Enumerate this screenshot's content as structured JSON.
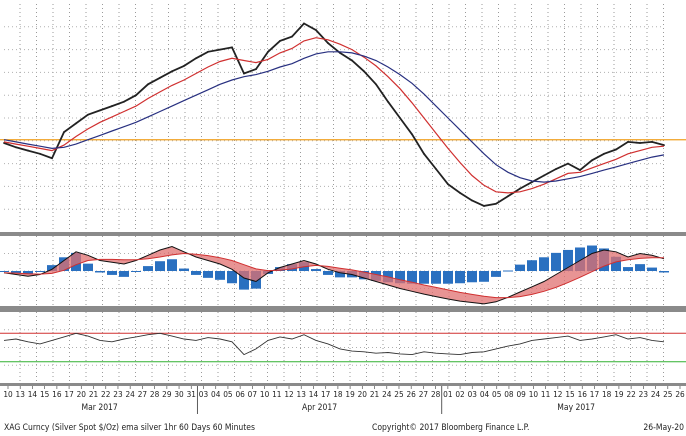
{
  "chart_data": {
    "type": "line",
    "footer": {
      "security": "XAG Curncy (Silver Spot  $/Oz) ema silver 1hr 60 Days 60 Minutes",
      "copyright": "Copyright© 2017 Bloomberg Finance L.P.",
      "date": "26-May-20"
    },
    "months": [
      "Mar 2017",
      "Apr 2017",
      "May 2017"
    ],
    "day_labels": [
      "10",
      "13",
      "14",
      "15",
      "16",
      "17",
      "20",
      "21",
      "22",
      "23",
      "24",
      "27",
      "28",
      "29",
      "30",
      "31",
      "03",
      "04",
      "05",
      "06",
      "07",
      "10",
      "11",
      "12",
      "13",
      "14",
      "17",
      "18",
      "19",
      "20",
      "21",
      "24",
      "25",
      "26",
      "27",
      "28",
      "01",
      "02",
      "03",
      "04",
      "05",
      "08",
      "09",
      "10",
      "11",
      "12",
      "15",
      "16",
      "17",
      "18",
      "19",
      "22",
      "23",
      "24",
      "25",
      "26"
    ],
    "grid": true,
    "price_panel": {
      "reference_level": 17.35,
      "reference_color": "#f0a020",
      "ylim": [
        16.5,
        18.6
      ],
      "series": [
        {
          "color": "#222222",
          "values": [
            17.32,
            17.28,
            17.25,
            17.22,
            17.18,
            17.42,
            17.5,
            17.58,
            17.62,
            17.66,
            17.7,
            17.76,
            17.86,
            17.92,
            17.98,
            18.03,
            18.1,
            18.16,
            18.18,
            18.2,
            17.96,
            18.0,
            18.16,
            18.26,
            18.3,
            18.42,
            18.36,
            18.24,
            18.15,
            18.08,
            17.98,
            17.86,
            17.7,
            17.55,
            17.4,
            17.22,
            17.08,
            16.94,
            16.86,
            16.79,
            16.74,
            16.76,
            16.83,
            16.9,
            16.96,
            17.02,
            17.08,
            17.13,
            17.07,
            17.16,
            17.22,
            17.26,
            17.33,
            17.32,
            17.33,
            17.3
          ]
        },
        {
          "color": "#d03030",
          "values": [
            17.33,
            17.31,
            17.29,
            17.27,
            17.25,
            17.3,
            17.38,
            17.45,
            17.51,
            17.56,
            17.61,
            17.66,
            17.73,
            17.79,
            17.85,
            17.9,
            17.96,
            18.02,
            18.07,
            18.1,
            18.08,
            18.06,
            18.09,
            18.15,
            18.19,
            18.26,
            18.29,
            18.27,
            18.23,
            18.18,
            18.11,
            18.03,
            17.93,
            17.82,
            17.69,
            17.55,
            17.41,
            17.27,
            17.14,
            17.02,
            16.93,
            16.87,
            16.86,
            16.87,
            16.9,
            16.94,
            16.99,
            17.04,
            17.05,
            17.09,
            17.13,
            17.17,
            17.22,
            17.25,
            17.28,
            17.29
          ]
        },
        {
          "color": "#283080",
          "values": [
            17.35,
            17.33,
            17.31,
            17.29,
            17.27,
            17.28,
            17.31,
            17.35,
            17.39,
            17.43,
            17.47,
            17.51,
            17.56,
            17.61,
            17.66,
            17.71,
            17.76,
            17.81,
            17.86,
            17.9,
            17.93,
            17.95,
            17.98,
            18.02,
            18.05,
            18.1,
            18.14,
            18.16,
            18.16,
            18.15,
            18.12,
            18.08,
            18.02,
            17.95,
            17.87,
            17.77,
            17.66,
            17.55,
            17.44,
            17.33,
            17.22,
            17.12,
            17.05,
            17.0,
            16.97,
            16.96,
            16.97,
            16.99,
            17.01,
            17.04,
            17.07,
            17.1,
            17.13,
            17.16,
            17.19,
            17.21
          ]
        }
      ]
    },
    "macd_panel": {
      "ylim": [
        -1,
        1
      ],
      "histogram_color": "#2a70c0",
      "fill_color": "#e07070",
      "series": [
        {
          "color": "#111111",
          "values": [
            -0.05,
            -0.1,
            -0.15,
            -0.1,
            0.05,
            0.3,
            0.55,
            0.45,
            0.3,
            0.25,
            0.2,
            0.3,
            0.45,
            0.6,
            0.7,
            0.55,
            0.4,
            0.3,
            0.2,
            0.05,
            -0.2,
            -0.3,
            -0.05,
            0.1,
            0.2,
            0.3,
            0.2,
            0.05,
            -0.05,
            -0.1,
            -0.2,
            -0.3,
            -0.4,
            -0.5,
            -0.58,
            -0.66,
            -0.73,
            -0.8,
            -0.86,
            -0.9,
            -0.94,
            -0.88,
            -0.75,
            -0.6,
            -0.45,
            -0.3,
            -0.1,
            0.1,
            0.3,
            0.5,
            0.6,
            0.55,
            0.4,
            0.5,
            0.45,
            0.35
          ]
        },
        {
          "color": "#d03030",
          "values": [
            -0.05,
            -0.06,
            -0.08,
            -0.09,
            -0.07,
            0.02,
            0.18,
            0.3,
            0.33,
            0.33,
            0.32,
            0.32,
            0.35,
            0.4,
            0.46,
            0.5,
            0.48,
            0.44,
            0.38,
            0.3,
            0.18,
            0.06,
            0.01,
            0.02,
            0.06,
            0.12,
            0.16,
            0.13,
            0.08,
            0.03,
            -0.03,
            -0.1,
            -0.17,
            -0.25,
            -0.32,
            -0.4,
            -0.47,
            -0.54,
            -0.61,
            -0.67,
            -0.72,
            -0.76,
            -0.76,
            -0.73,
            -0.67,
            -0.58,
            -0.47,
            -0.33,
            -0.18,
            -0.02,
            0.14,
            0.26,
            0.32,
            0.36,
            0.38,
            0.38
          ]
        }
      ]
    },
    "oscillator_panel": {
      "ylim": [
        0,
        100
      ],
      "upper_level": 70,
      "lower_level": 30,
      "upper_color": "#d03030",
      "lower_color": "#30b030",
      "series": [
        {
          "color": "#333333",
          "values": [
            60,
            62,
            58,
            55,
            60,
            65,
            70,
            66,
            60,
            58,
            62,
            65,
            68,
            70,
            66,
            62,
            60,
            64,
            62,
            58,
            40,
            48,
            60,
            65,
            62,
            68,
            60,
            55,
            48,
            45,
            44,
            42,
            43,
            41,
            40,
            44,
            42,
            41,
            40,
            43,
            44,
            48,
            52,
            55,
            60,
            62,
            64,
            66,
            60,
            62,
            65,
            68,
            62,
            64,
            60,
            58
          ]
        }
      ]
    }
  }
}
